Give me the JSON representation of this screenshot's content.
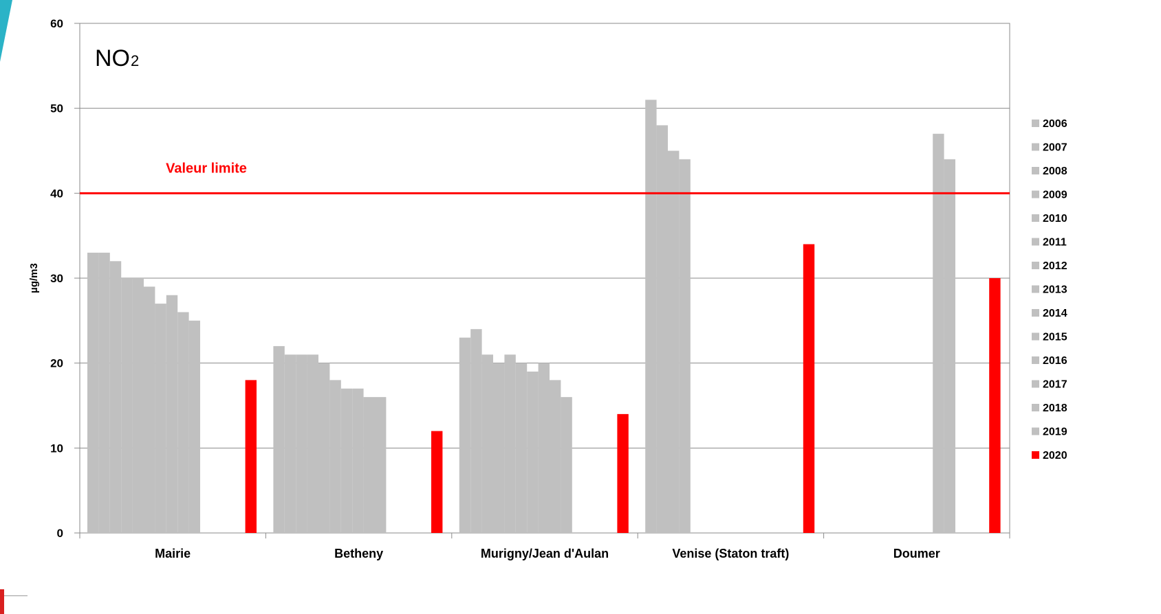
{
  "chart_data": {
    "type": "bar",
    "title": "NO",
    "title_subscript": "2",
    "xlabel": "",
    "ylabel": "µg/m3",
    "ylim": [
      0,
      60
    ],
    "yticks": [
      0,
      10,
      20,
      30,
      40,
      50,
      60
    ],
    "grid": true,
    "legend_position": "right",
    "categories": [
      "Mairie",
      "Betheny",
      "Murigny/Jean d'Aulan",
      "Venise (Staton traft)",
      "Doumer"
    ],
    "series": [
      {
        "name": "2006",
        "color": "#c0c0c0",
        "values": [
          33,
          22,
          23,
          51,
          null
        ]
      },
      {
        "name": "2007",
        "color": "#c0c0c0",
        "values": [
          33,
          21,
          24,
          48,
          null
        ]
      },
      {
        "name": "2008",
        "color": "#c0c0c0",
        "values": [
          32,
          21,
          21,
          45,
          null
        ]
      },
      {
        "name": "2009",
        "color": "#c0c0c0",
        "values": [
          30,
          21,
          20,
          44,
          null
        ]
      },
      {
        "name": "2010",
        "color": "#c0c0c0",
        "values": [
          30,
          20,
          21,
          null,
          null
        ]
      },
      {
        "name": "2011",
        "color": "#c0c0c0",
        "values": [
          29,
          18,
          20,
          null,
          null
        ]
      },
      {
        "name": "2012",
        "color": "#c0c0c0",
        "values": [
          27,
          17,
          19,
          null,
          null
        ]
      },
      {
        "name": "2013",
        "color": "#c0c0c0",
        "values": [
          28,
          17,
          20,
          null,
          null
        ]
      },
      {
        "name": "2014",
        "color": "#c0c0c0",
        "values": [
          26,
          16,
          18,
          null,
          null
        ]
      },
      {
        "name": "2015",
        "color": "#c0c0c0",
        "values": [
          25,
          16,
          16,
          null,
          47
        ]
      },
      {
        "name": "2016",
        "color": "#c0c0c0",
        "values": [
          null,
          null,
          null,
          null,
          44
        ]
      },
      {
        "name": "2017",
        "color": "#c0c0c0",
        "values": [
          null,
          null,
          null,
          null,
          null
        ]
      },
      {
        "name": "2018",
        "color": "#c0c0c0",
        "values": [
          null,
          null,
          null,
          null,
          null
        ]
      },
      {
        "name": "2019",
        "color": "#c0c0c0",
        "values": [
          null,
          null,
          null,
          null,
          null
        ]
      },
      {
        "name": "2020",
        "color": "#ff0000",
        "values": [
          18,
          12,
          14,
          34,
          30
        ]
      }
    ],
    "reference_line": {
      "value": 40,
      "label": "Valeur limite",
      "color": "#ff0000"
    }
  }
}
